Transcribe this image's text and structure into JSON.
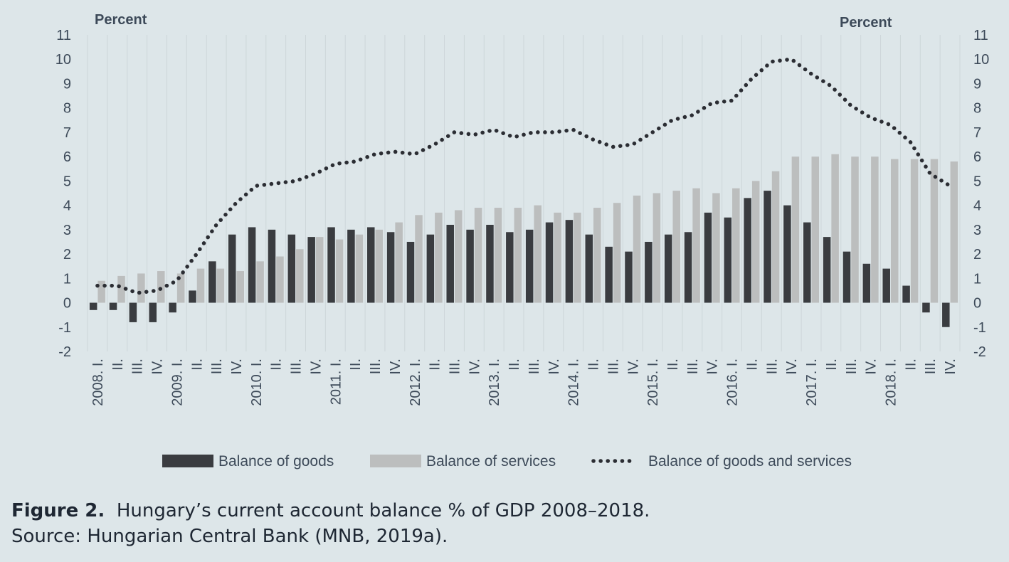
{
  "chart_data": {
    "type": "bar",
    "left_axis_title": "Percent",
    "right_axis_title": "Percent",
    "ylim": [
      -2,
      11
    ],
    "yticks": [
      -2,
      -1,
      0,
      1,
      2,
      3,
      4,
      5,
      6,
      7,
      8,
      9,
      10,
      11
    ],
    "categories": [
      "2008. I.",
      "II.",
      "III.",
      "IV.",
      "2009. I.",
      "II.",
      "III.",
      "IV.",
      "2010. I.",
      "II.",
      "III.",
      "IV.",
      "2011. I.",
      "II.",
      "III.",
      "IV.",
      "2012. I.",
      "II.",
      "III.",
      "IV.",
      "2013. I.",
      "II.",
      "III.",
      "IV.",
      "2014. I.",
      "II.",
      "III.",
      "IV.",
      "2015. I.",
      "II.",
      "III.",
      "IV.",
      "2016. I.",
      "II.",
      "III.",
      "IV.",
      "2017. I.",
      "II.",
      "III.",
      "IV.",
      "2018. I.",
      "II.",
      "III.",
      "IV."
    ],
    "series": [
      {
        "name": "Balance of goods",
        "kind": "bar",
        "color": "#3a3c40",
        "values": [
          -0.3,
          -0.3,
          -0.8,
          -0.8,
          -0.4,
          0.5,
          1.7,
          2.8,
          3.1,
          3.0,
          2.8,
          2.7,
          3.1,
          3.0,
          3.1,
          2.9,
          2.5,
          2.8,
          3.2,
          3.0,
          3.2,
          2.9,
          3.0,
          3.3,
          3.4,
          2.8,
          2.3,
          2.1,
          2.5,
          2.8,
          2.9,
          3.7,
          3.5,
          4.3,
          4.6,
          4.0,
          3.3,
          2.7,
          2.1,
          1.6,
          1.4,
          0.7,
          -0.4,
          -1.0
        ]
      },
      {
        "name": "Balance of services",
        "kind": "bar",
        "color": "#bcbebe",
        "values": [
          0.9,
          1.1,
          1.2,
          1.3,
          1.2,
          1.4,
          1.4,
          1.3,
          1.7,
          1.9,
          2.2,
          2.7,
          2.6,
          2.8,
          3.0,
          3.3,
          3.6,
          3.7,
          3.8,
          3.9,
          3.9,
          3.9,
          4.0,
          3.7,
          3.7,
          3.9,
          4.1,
          4.4,
          4.5,
          4.6,
          4.7,
          4.5,
          4.7,
          5.0,
          5.4,
          6.0,
          6.0,
          6.1,
          6.0,
          6.0,
          5.9,
          5.9,
          5.9,
          5.8
        ]
      },
      {
        "name": "Balance of goods and services",
        "kind": "dotted-line",
        "color": "#2b2d33",
        "values": [
          0.7,
          0.7,
          0.4,
          0.5,
          0.9,
          2.0,
          3.2,
          4.1,
          4.8,
          4.9,
          5.0,
          5.3,
          5.7,
          5.8,
          6.1,
          6.2,
          6.1,
          6.5,
          7.0,
          6.9,
          7.1,
          6.8,
          7.0,
          7.0,
          7.1,
          6.7,
          6.4,
          6.5,
          7.0,
          7.5,
          7.7,
          8.2,
          8.3,
          9.2,
          9.9,
          10.0,
          9.4,
          8.9,
          8.1,
          7.6,
          7.3,
          6.6,
          5.3,
          4.8
        ]
      }
    ],
    "legend_position": "bottom",
    "grid": "vertical"
  },
  "caption": {
    "figure_label": "Figure 2.",
    "title": "Hungary’s current account balance % of GDP 2008–2018.",
    "source": "Source: Hungarian Central Bank (MNB, 2019a)."
  }
}
